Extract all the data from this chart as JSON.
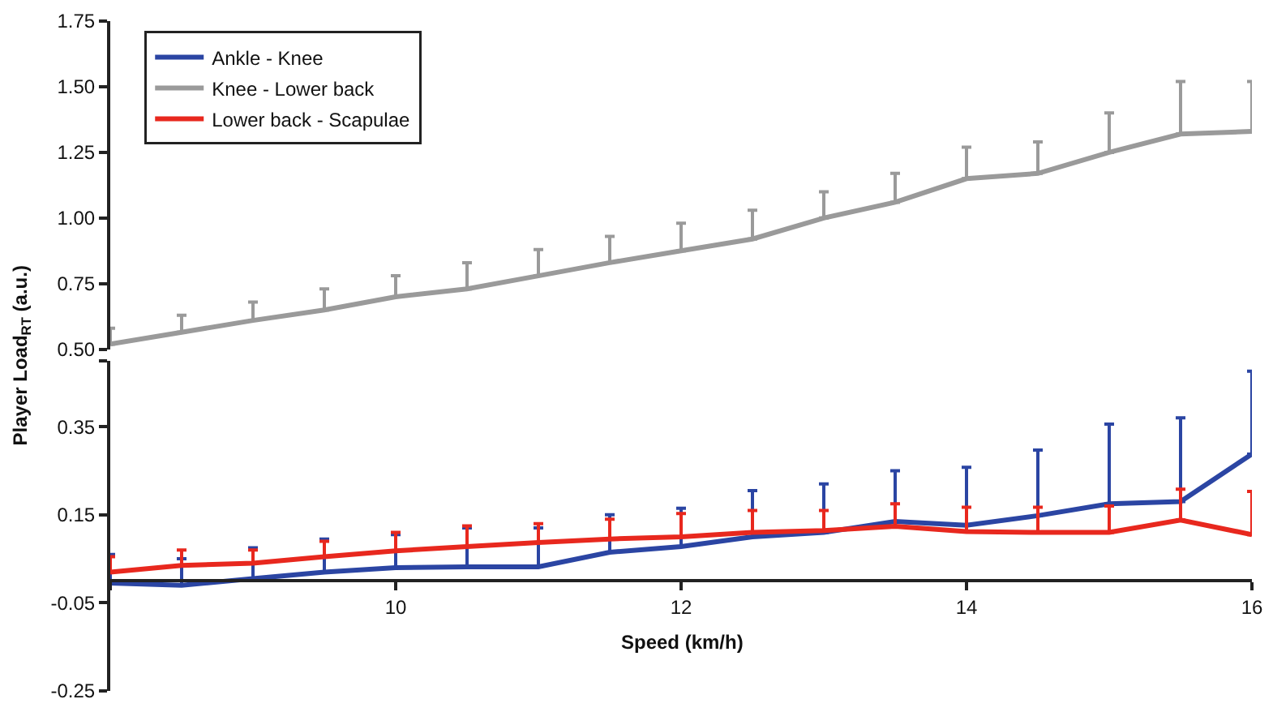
{
  "chart_data": [
    {
      "type": "line",
      "xlim": [
        8,
        16
      ],
      "ylim": [
        0.5,
        1.75
      ],
      "yticks": [
        {
          "value": 0.5,
          "label": "0.50"
        },
        {
          "value": 0.75,
          "label": "0.75"
        },
        {
          "value": 1.0,
          "label": "1.00"
        },
        {
          "value": 1.25,
          "label": "1.25"
        },
        {
          "value": 1.5,
          "label": "1.50"
        },
        {
          "value": 1.75,
          "label": "1.75"
        }
      ],
      "tick_labels": "y",
      "legend": "top left",
      "marker": "none",
      "x": [
        8,
        8.5,
        9,
        9.5,
        10,
        10.5,
        11,
        11.5,
        12,
        12.5,
        13,
        13.5,
        14,
        14.5,
        15,
        15.5,
        16
      ],
      "series": [
        {
          "name": "Knee - Lower back",
          "color": "#9a9a9a",
          "values": [
            0.52,
            0.565,
            0.61,
            0.65,
            0.7,
            0.73,
            0.78,
            0.83,
            0.875,
            0.92,
            1.0,
            1.06,
            1.15,
            1.17,
            1.25,
            1.32,
            1.33
          ],
          "errors": [
            [
              0.52,
              0.58
            ],
            [
              0.565,
              0.63
            ],
            [
              0.61,
              0.68
            ],
            [
              0.65,
              0.73
            ],
            [
              0.7,
              0.78
            ],
            [
              0.73,
              0.83
            ],
            [
              0.78,
              0.88
            ],
            [
              0.83,
              0.93
            ],
            [
              0.875,
              0.98
            ],
            [
              0.92,
              1.03
            ],
            [
              1.0,
              1.1
            ],
            [
              1.06,
              1.17
            ],
            [
              1.15,
              1.27
            ],
            [
              1.17,
              1.29
            ],
            [
              1.25,
              1.4
            ],
            [
              1.32,
              1.52
            ],
            [
              1.33,
              1.52
            ]
          ]
        }
      ]
    },
    {
      "type": "line",
      "xlim": [
        8,
        16
      ],
      "ylim": [
        -0.25,
        0.5
      ],
      "xticks": [
        {
          "value": 8,
          "label": null
        },
        10,
        12,
        14,
        16
      ],
      "yticks": [
        -0.25,
        -0.05,
        0.15,
        0.35,
        {
          "value": 0.5,
          "label": null
        }
      ],
      "xlabel": "Speed (km/h)",
      "ylabel": "Player Load$_{RT}$ (a.u.)",
      "legend": "top left",
      "marker": "none",
      "x": [
        8,
        8.5,
        9,
        9.5,
        10,
        10.5,
        11,
        11.5,
        12,
        12.5,
        13,
        13.5,
        14,
        14.5,
        15,
        15.5,
        16
      ],
      "series": [
        {
          "name": "Ankle - Knee",
          "color": "#2b45a3",
          "values": [
            -0.005,
            -0.01,
            0.005,
            0.02,
            0.03,
            0.032,
            0.032,
            0.065,
            0.078,
            0.1,
            0.11,
            0.135,
            0.126,
            0.148,
            0.175,
            0.18,
            0.288
          ],
          "errors": [
            [
              -0.005,
              0.06
            ],
            [
              -0.01,
              0.05
            ],
            [
              0.005,
              0.075
            ],
            [
              0.02,
              0.095
            ],
            [
              0.03,
              0.105
            ],
            [
              0.032,
              0.12
            ],
            [
              0.032,
              0.12
            ],
            [
              0.065,
              0.15
            ],
            [
              0.078,
              0.165
            ],
            [
              0.1,
              0.205
            ],
            [
              0.11,
              0.22
            ],
            [
              0.135,
              0.25
            ],
            [
              0.126,
              0.258
            ],
            [
              0.148,
              0.297
            ],
            [
              0.175,
              0.356
            ],
            [
              0.18,
              0.37
            ],
            [
              0.288,
              0.476
            ]
          ]
        },
        {
          "name": "Lower back - Scapulae",
          "color": "#e8281e",
          "values": [
            0.02,
            0.035,
            0.04,
            0.055,
            0.068,
            0.078,
            0.087,
            0.095,
            0.1,
            0.11,
            0.114,
            0.124,
            0.112,
            0.11,
            0.11,
            0.138,
            0.105
          ],
          "errors": [
            [
              0.02,
              0.055
            ],
            [
              0.035,
              0.07
            ],
            [
              0.04,
              0.07
            ],
            [
              0.055,
              0.09
            ],
            [
              0.068,
              0.11
            ],
            [
              0.078,
              0.125
            ],
            [
              0.087,
              0.13
            ],
            [
              0.095,
              0.14
            ],
            [
              0.1,
              0.153
            ],
            [
              0.11,
              0.16
            ],
            [
              0.114,
              0.16
            ],
            [
              0.124,
              0.175
            ],
            [
              0.112,
              0.167
            ],
            [
              0.11,
              0.167
            ],
            [
              0.11,
              0.17
            ],
            [
              0.138,
              0.208
            ],
            [
              0.105,
              0.203
            ]
          ]
        }
      ]
    }
  ]
}
